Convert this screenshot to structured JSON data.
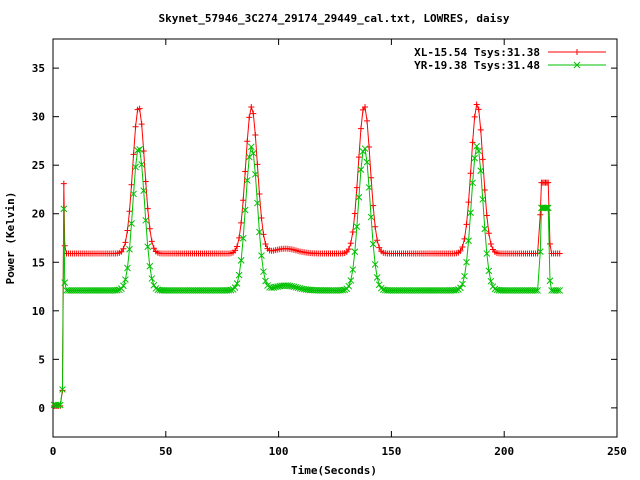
{
  "chart_data": {
    "type": "line",
    "title": "Skynet_57946_3C274_29174_29449_cal.txt, LOWRES, daisy",
    "xlabel": "Time(Seconds)",
    "ylabel": "Power (Kelvin)",
    "xlim": [
      0,
      250
    ],
    "ylim": [
      -3,
      38
    ],
    "xticks": [
      0,
      50,
      100,
      150,
      200,
      250
    ],
    "yticks": [
      0,
      5,
      10,
      15,
      20,
      25,
      30,
      35
    ],
    "grid": false,
    "legend_position": "top-right",
    "series": [
      {
        "name": "XL-15.54 Tsys:31.38",
        "color": "#ff0000",
        "marker": "plus",
        "baseline": 15.9,
        "start_baseline": 0.2,
        "spike": {
          "x": 4.8,
          "y": 23.1
        },
        "peaks": [
          {
            "x": 38,
            "y": 31.0
          },
          {
            "x": 88,
            "y": 31.0
          },
          {
            "x": 138,
            "y": 31.1
          },
          {
            "x": 188,
            "y": 31.3
          }
        ],
        "bump": {
          "x": 103,
          "y": 16.4
        },
        "end_plateau": {
          "x_start": 216.5,
          "x_end": 219.5,
          "y": 23.2
        },
        "x_start": 0.5,
        "x_end": 225
      },
      {
        "name": "YR-19.38 Tsys:31.48",
        "color": "#00c000",
        "marker": "cross",
        "baseline": 12.1,
        "start_baseline": 0.3,
        "spike": {
          "x": 4.8,
          "y": 20.5
        },
        "peaks": [
          {
            "x": 38,
            "y": 26.8
          },
          {
            "x": 88,
            "y": 26.9
          },
          {
            "x": 138,
            "y": 26.8
          },
          {
            "x": 188,
            "y": 27.0
          }
        ],
        "bump": {
          "x": 103,
          "y": 12.6
        },
        "end_plateau": {
          "x_start": 216.5,
          "x_end": 219.5,
          "y": 20.6
        },
        "x_start": 0.5,
        "x_end": 225
      }
    ]
  }
}
